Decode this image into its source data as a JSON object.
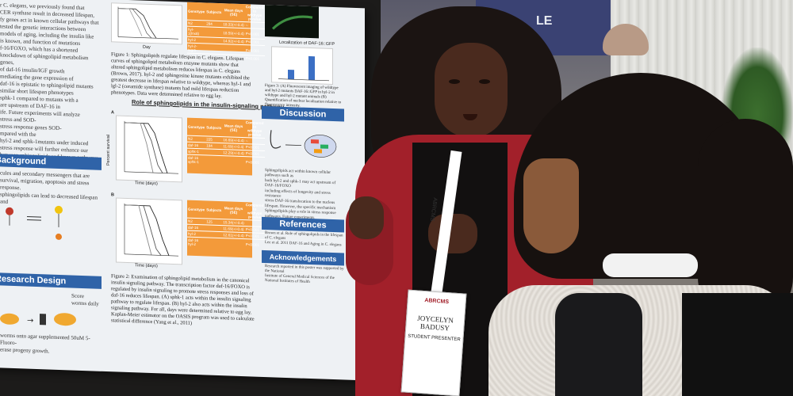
{
  "scene": {
    "description_free": true
  },
  "poster": {
    "intro_lines": [
      "r C. elegans, we previously found that",
      "CER synthase result in decreased lifespan,",
      "fy genes act in known cellular pathways that",
      "tested the genetic interactions between",
      "models of aging, including the insulin like",
      "is known, and function of mutations",
      "f-16/FOXO, which has a shortened",
      "knockdown of sphingolipid metabolism genes,",
      "of daf-16 insulin/IGF growth",
      "mediating the gene expression of",
      "daf-16 is epistatic to sphingolipid mutants",
      "similar short lifespan phenotypes",
      "sphk-1 compared to mutants with a",
      "are upstream of DAF-16 in",
      "ife. Future experiments will analyze",
      "stress and SOD-",
      "stress response genes SOD-",
      "mpared with the",
      "hyl-2 and sphk-1mutants under induced",
      "stress response will further enhance our",
      "between sphingolipids and known pathways",
      "ichspan."
    ],
    "background_heading": "Background",
    "background_lines": [
      "cules and secondary messengers that are",
      "survival, migration, apoptosis and stress response.",
      "sphingolipids can lead to decreased lifespan and"
    ],
    "research_heading": "Research Design",
    "research_lines": [
      "Score",
      "worms daily"
    ],
    "footer_lines": [
      "worms onto agar supplemented 50uM 5-Fluoro-",
      "erase progeny growth."
    ],
    "fig1_caption": "Figure 1: Sphingolipids regulate lifespan in C. elegans. Lifespan curves of sphingolipid metabolism enzyme mutants show that altered sphingolipid metabolism reduces lifespan in C. elegans (Brown, 2017). hyl-2 and sphingosine kinase mutants exhibited the greatest decrease in lifespan relative to wildtype, whereas hyl-1 and lgl-2 (ceramide synthase) mutants had mild lifespan reduction phenotypes. Data were determined relative to egg lay.",
    "role_heading": "Role of sphingolipids in the insulin-signaling pathway",
    "fig2_caption": "Figure 2: Examination of sphingolipid metabolism in the canonical insulin signaling pathway. The transcription factor daf-16/FOXO is regulated by insulin signaling to promote stress responses and loss of daf-16 reduces lifespan. (A) sphk-1 acts within the insulin signaling pathway to regulate lifespan. (B) hyl-2 also acts within the insulin signaling pathway. For all, days were determined relative to egg lay. Kaplan-Meier estimator on the OASIS program was used to calculate statistical difference (Yang et al., 2011)",
    "table_headers": [
      "Genotype",
      "Subjects",
      "Mean days (SE)",
      "Compared to wildtype p-value"
    ],
    "table1_rows": [
      [
        "N2",
        "284",
        "18.33(+/-0.4)",
        "--"
      ],
      [
        "hyl-1(lnx8)",
        "",
        "18.59(+/-0.4)",
        "P<0.001"
      ],
      [
        "hyl-2",
        "",
        "14.92(+/-0.4)",
        "P<0.001"
      ],
      [
        "hyl-2-lagr1",
        "",
        "",
        "P<0.001"
      ],
      [
        "lagr-1",
        "",
        "",
        "P<0.001"
      ]
    ],
    "table2_rows": [
      [
        "N2",
        "225",
        "16.69(+/-0.4)",
        "--"
      ],
      [
        "daf-16",
        "194",
        "11.69(+/-0.4)",
        "P<0.001"
      ],
      [
        "sphk-1",
        "",
        "12.29(+/-0.4)",
        "P<0.001"
      ],
      [
        "daf-16 sphk-1",
        "",
        "",
        "P<0.001"
      ]
    ],
    "table3_rows": [
      [
        "N2",
        "125",
        "15.34(+/-0.4)",
        ""
      ],
      [
        "daf-16",
        "",
        "11.69(+/-0.4)",
        "P<0.001"
      ],
      [
        "hyl-2",
        "",
        "12.61(+/-0.4)",
        "P<0.001"
      ],
      [
        "daf-16 hyl-2",
        "",
        "",
        "P<0.001"
      ]
    ],
    "axis_y": "Percent survival",
    "axis_x": "Time (days)",
    "day_label": "Day",
    "fig_bar_title": "Localization of DAF-16::GFP",
    "fig3_caption": "Figure 3: (A) Fluorescent imaging of wildtype and hyl-2 mutants DAF-16::GFP in hyl-2 in wildtype and hyl-2 mutant animals (B) Quantification of nuclear localization relative to fluorescence intensity.",
    "discussion_heading": "Discussion",
    "discussion_lines": [
      "Sphingolipids act within known cellular pathways such as",
      "both hyl-2 and sphk-1 may act upstream of DAF-16/FOXO",
      "including effects of longevity and stress resistance",
      "stress DAF-16 translocation to the nucleus",
      "lifespan. However, the specific mechanism",
      "Sphingolipids play a role in stress response",
      "pathways. Future experiments",
      "evaluate how different stressors and their",
      "to further understanding the role of"
    ],
    "references_heading": "References",
    "references_lines": [
      "Brown et al. Role of sphingolipids in the lifespan of C. elegans",
      "Lee et al. 2011 DAF-16 and Aging in C. elegans"
    ],
    "ack_heading": "Acknowledgements",
    "ack_lines": [
      "Research reported in this poster was supported by the National",
      "Institute of General Medical Sciences of the National Institutes of Health"
    ]
  },
  "lanyard_text": "ABRCMS",
  "badge": {
    "name_line1": "JOYCELYN",
    "name_line2": "BADUSY",
    "role": "STUDENT PRESENTER",
    "logo": "ABRCMS"
  },
  "sign_text": "LE",
  "colors": {
    "poster_bg": "#eef1f4",
    "band_blue": "#2f63a8",
    "table_orange": "#f39a3a",
    "board_black": "#1c1b1a",
    "jacket_red": "#a2202a",
    "hair": "#1b1412"
  }
}
